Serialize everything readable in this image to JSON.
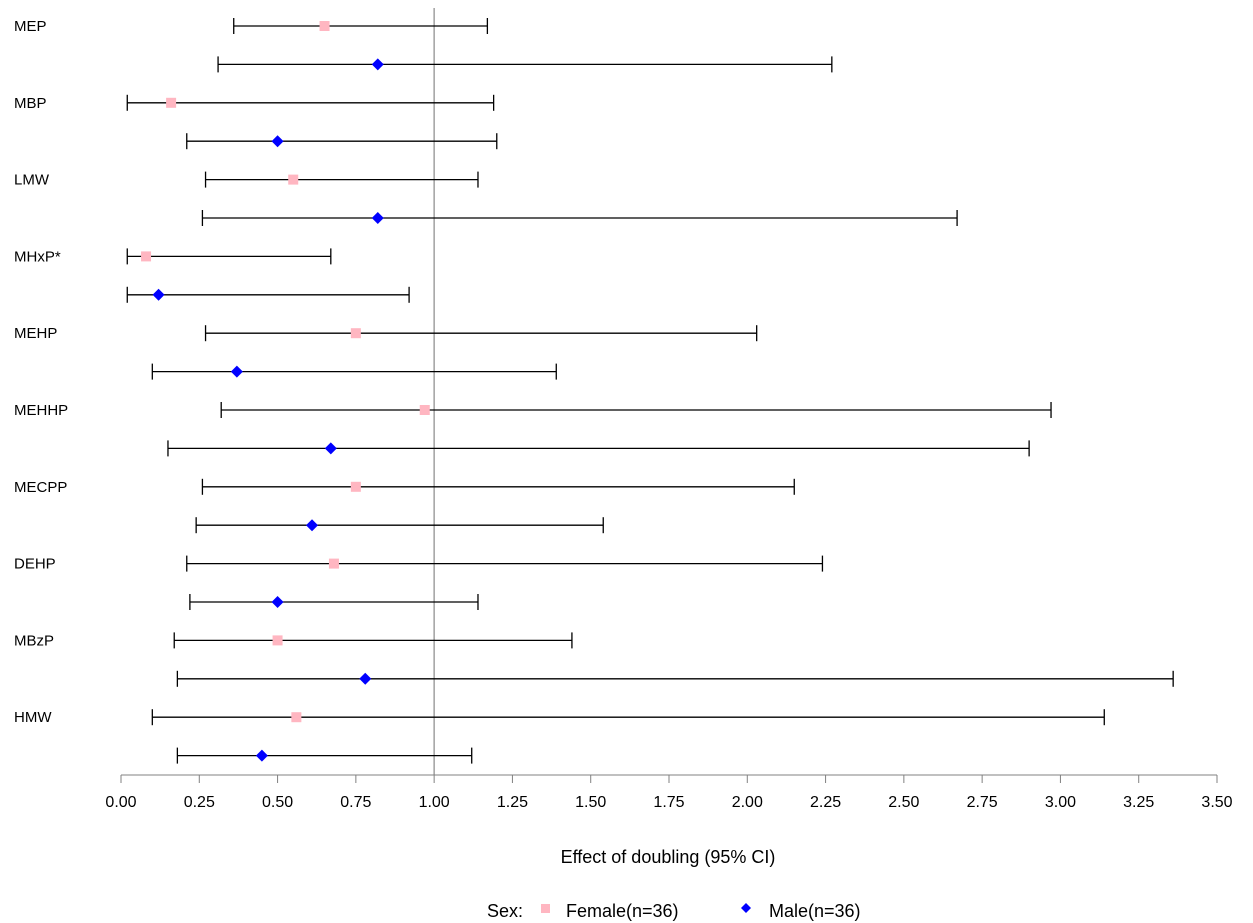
{
  "chart_data": {
    "type": "forest",
    "xlabel": "Effect of doubling (95% CI)",
    "xlim": [
      0,
      3.5
    ],
    "x_ticks": [
      "0.00",
      "0.25",
      "0.50",
      "0.75",
      "1.00",
      "1.25",
      "1.50",
      "1.75",
      "2.00",
      "2.25",
      "2.50",
      "2.75",
      "3.00",
      "3.25",
      "3.50"
    ],
    "reference_line": 1.0,
    "categories": [
      "MEP",
      "MBP",
      "LMW",
      "MHxP*",
      "MEHP",
      "MEHHP",
      "MECPP",
      "DEHP",
      "MBzP",
      "HMW"
    ],
    "series": [
      {
        "name": "Female(n=36)",
        "marker": "square",
        "color": "#ffb6c1",
        "points": [
          {
            "estimate": 0.65,
            "lower": 0.36,
            "upper": 1.17
          },
          {
            "estimate": 0.16,
            "lower": 0.02,
            "upper": 1.19
          },
          {
            "estimate": 0.55,
            "lower": 0.27,
            "upper": 1.14
          },
          {
            "estimate": 0.08,
            "lower": 0.02,
            "upper": 0.67
          },
          {
            "estimate": 0.75,
            "lower": 0.27,
            "upper": 2.03
          },
          {
            "estimate": 0.97,
            "lower": 0.32,
            "upper": 2.97
          },
          {
            "estimate": 0.75,
            "lower": 0.26,
            "upper": 2.15
          },
          {
            "estimate": 0.68,
            "lower": 0.21,
            "upper": 2.24
          },
          {
            "estimate": 0.5,
            "lower": 0.17,
            "upper": 1.44
          },
          {
            "estimate": 0.56,
            "lower": 0.1,
            "upper": 3.14
          }
        ]
      },
      {
        "name": "Male(n=36)",
        "marker": "diamond",
        "color": "#0000ff",
        "points": [
          {
            "estimate": 0.82,
            "lower": 0.31,
            "upper": 2.27
          },
          {
            "estimate": 0.5,
            "lower": 0.21,
            "upper": 1.2
          },
          {
            "estimate": 0.82,
            "lower": 0.26,
            "upper": 2.67
          },
          {
            "estimate": 0.12,
            "lower": 0.02,
            "upper": 0.92
          },
          {
            "estimate": 0.37,
            "lower": 0.1,
            "upper": 1.39
          },
          {
            "estimate": 0.67,
            "lower": 0.15,
            "upper": 2.9
          },
          {
            "estimate": 0.61,
            "lower": 0.24,
            "upper": 1.54
          },
          {
            "estimate": 0.5,
            "lower": 0.22,
            "upper": 1.14
          },
          {
            "estimate": 0.78,
            "lower": 0.18,
            "upper": 3.36
          },
          {
            "estimate": 0.45,
            "lower": 0.18,
            "upper": 1.12
          }
        ]
      }
    ],
    "legend": {
      "title": "Sex:",
      "placement": "bottom-center"
    }
  }
}
